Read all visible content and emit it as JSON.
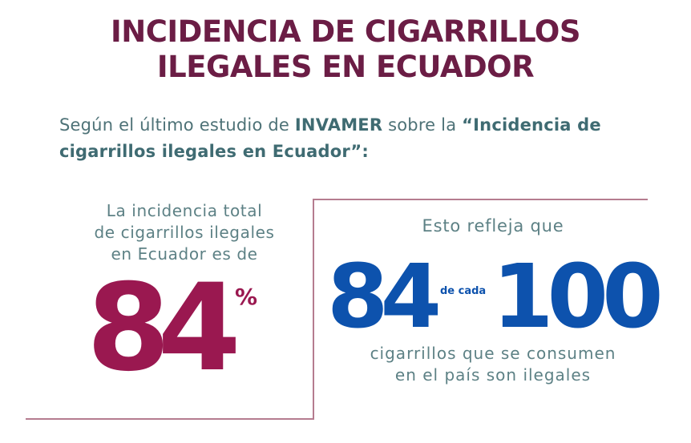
{
  "title": {
    "line1": "INCIDENCIA DE CIGARRILLOS",
    "line2": "ILEGALES EN ECUADOR"
  },
  "intro": {
    "prefix": "Según el último estudio de ",
    "source": "INVAMER",
    "middle": " sobre la ",
    "study_title": "“Incidencia de cigarrillos ilegales en Ecuador”:"
  },
  "left_panel": {
    "caption_line1": "La incidencia total",
    "caption_line2": "de cigarrillos ilegales",
    "caption_line3": "en Ecuador es de",
    "value": "84",
    "unit": "%"
  },
  "right_panel": {
    "caption_top": "Esto refleja que",
    "numerator": "84",
    "connector": "de cada",
    "denominator": "100",
    "caption_bottom_line1": "cigarrillos que se consumen",
    "caption_bottom_line2": "en el país son ilegales"
  },
  "colors": {
    "title": "#6b1d45",
    "body_text": "#5d8185",
    "accent_maroon": "#9a1850",
    "accent_blue": "#0d52ad",
    "frame": "#b57c8f"
  }
}
